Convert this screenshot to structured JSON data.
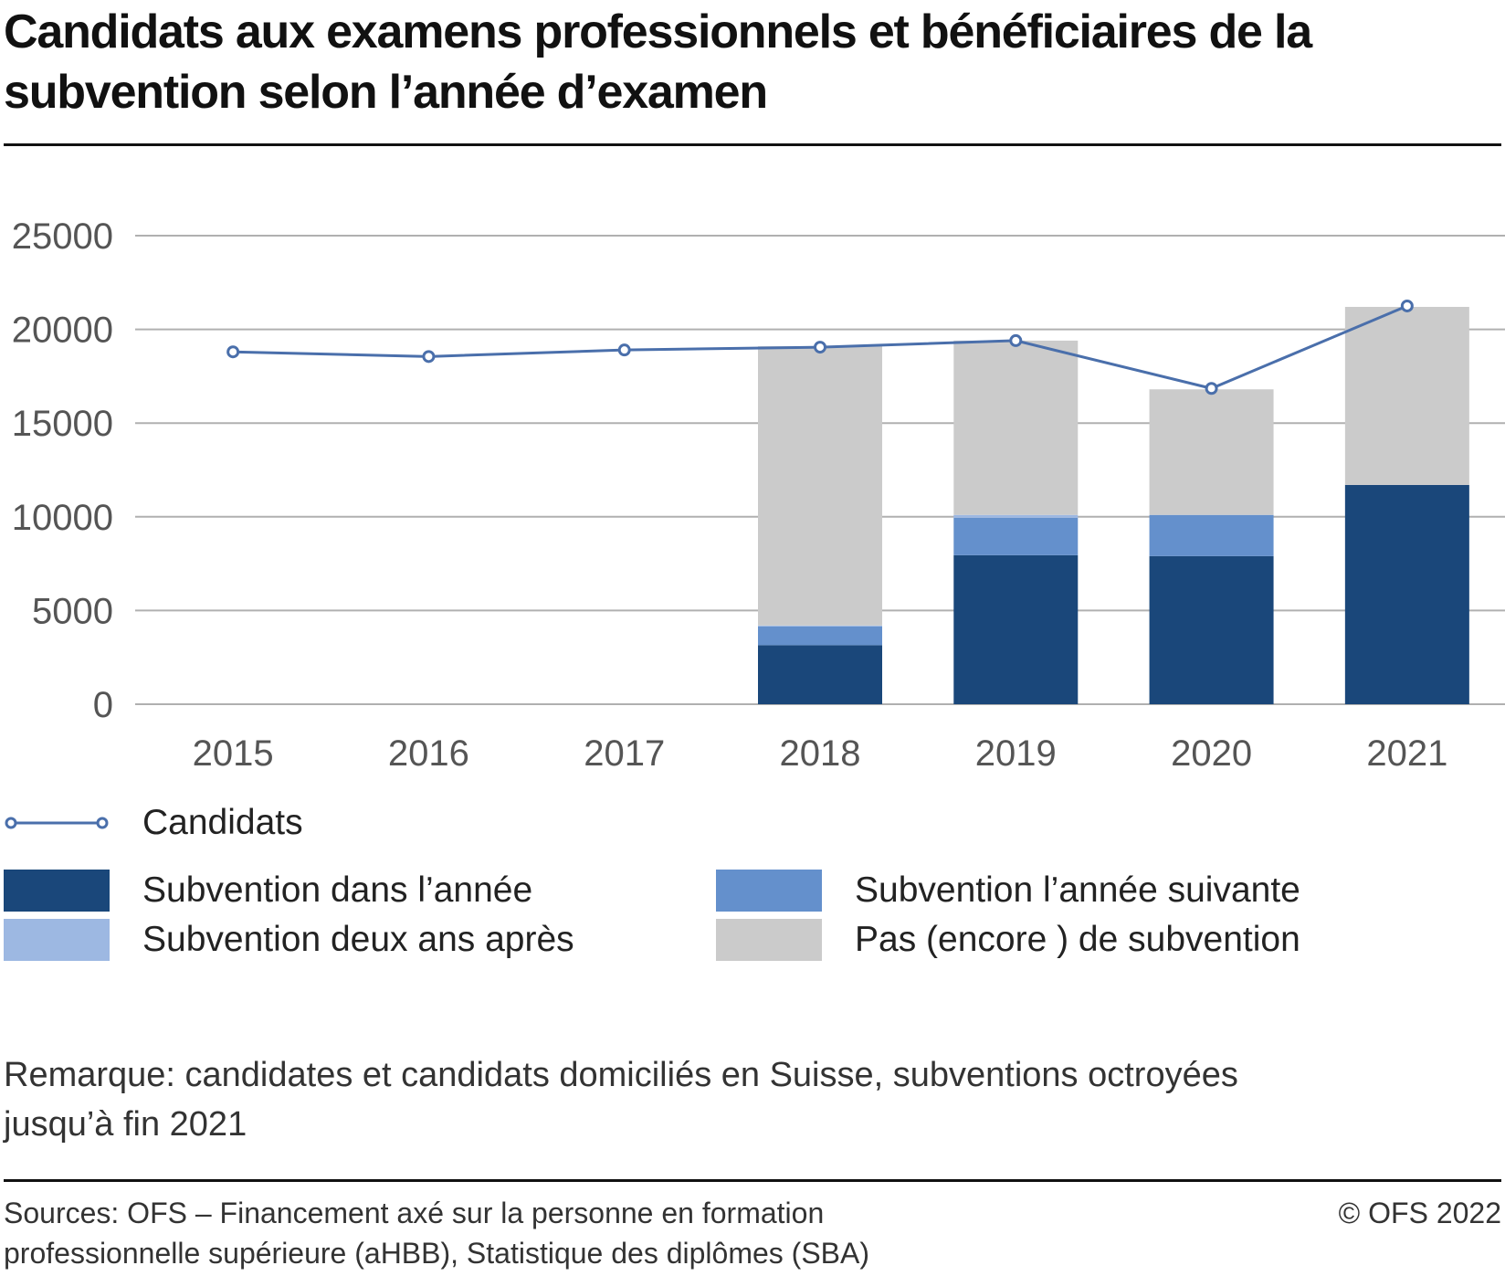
{
  "chart_data": {
    "type": "bar",
    "stacked": true,
    "title": "Candidats aux examens professionnels et bénéficiaires de la subvention selon l’année d’examen",
    "xlabel": "",
    "ylabel": "",
    "ylim": [
      0,
      25000
    ],
    "yticks": [
      "0",
      "5000",
      "10000",
      "15000",
      "20000",
      "25000"
    ],
    "yticks_values": [
      0,
      5000,
      10000,
      15000,
      20000,
      25000
    ],
    "grid": true,
    "categories": [
      "2015",
      "2016",
      "2017",
      "2018",
      "2019",
      "2020",
      "2021"
    ],
    "series": [
      {
        "name": "Subvention dans l’année",
        "type": "bar",
        "color": "#1a477a",
        "values": [
          null,
          null,
          null,
          3150,
          7950,
          7900,
          11700
        ]
      },
      {
        "name": "Subvention l’année suivante",
        "type": "bar",
        "color": "#6490cc",
        "values": [
          null,
          null,
          null,
          1000,
          2000,
          2200,
          null
        ]
      },
      {
        "name": "Subvention deux ans après",
        "type": "bar",
        "color": "#9db8e2",
        "values": [
          null,
          null,
          null,
          50,
          150,
          null,
          null
        ]
      },
      {
        "name": "Pas (encore ) de subvention",
        "type": "bar",
        "color": "#cbcbcb",
        "values": [
          null,
          null,
          null,
          14900,
          9300,
          6700,
          9500
        ]
      },
      {
        "name": "Candidats",
        "type": "line",
        "color": "#4a6fab",
        "values": [
          18800,
          18550,
          18900,
          19050,
          19400,
          16850,
          21250
        ]
      }
    ],
    "legend_position": "bottom"
  },
  "legend": {
    "line_label": "Candidats",
    "items": [
      {
        "label": "Subvention dans l’année",
        "color": "#1a477a"
      },
      {
        "label": "Subvention l’année suivante",
        "color": "#6490cc"
      },
      {
        "label": "Subvention deux ans après",
        "color": "#9db8e2"
      },
      {
        "label": "Pas (encore ) de subvention",
        "color": "#cbcbcb"
      }
    ]
  },
  "note": {
    "line1": "Remarque: candidates et candidats domiciliés en Suisse, subventions octroyées",
    "line2": "jusqu’à fin 2021"
  },
  "source": {
    "line1": "Sources: OFS – Financement axé sur la personne en formation",
    "line2": "professionnelle supérieure (aHBB), Statistique des diplômes (SBA)",
    "copyright": "© OFS 2022"
  },
  "colors": {
    "grid": "#b0b0b0",
    "line": "#4a6fab",
    "rule": "#111111"
  }
}
